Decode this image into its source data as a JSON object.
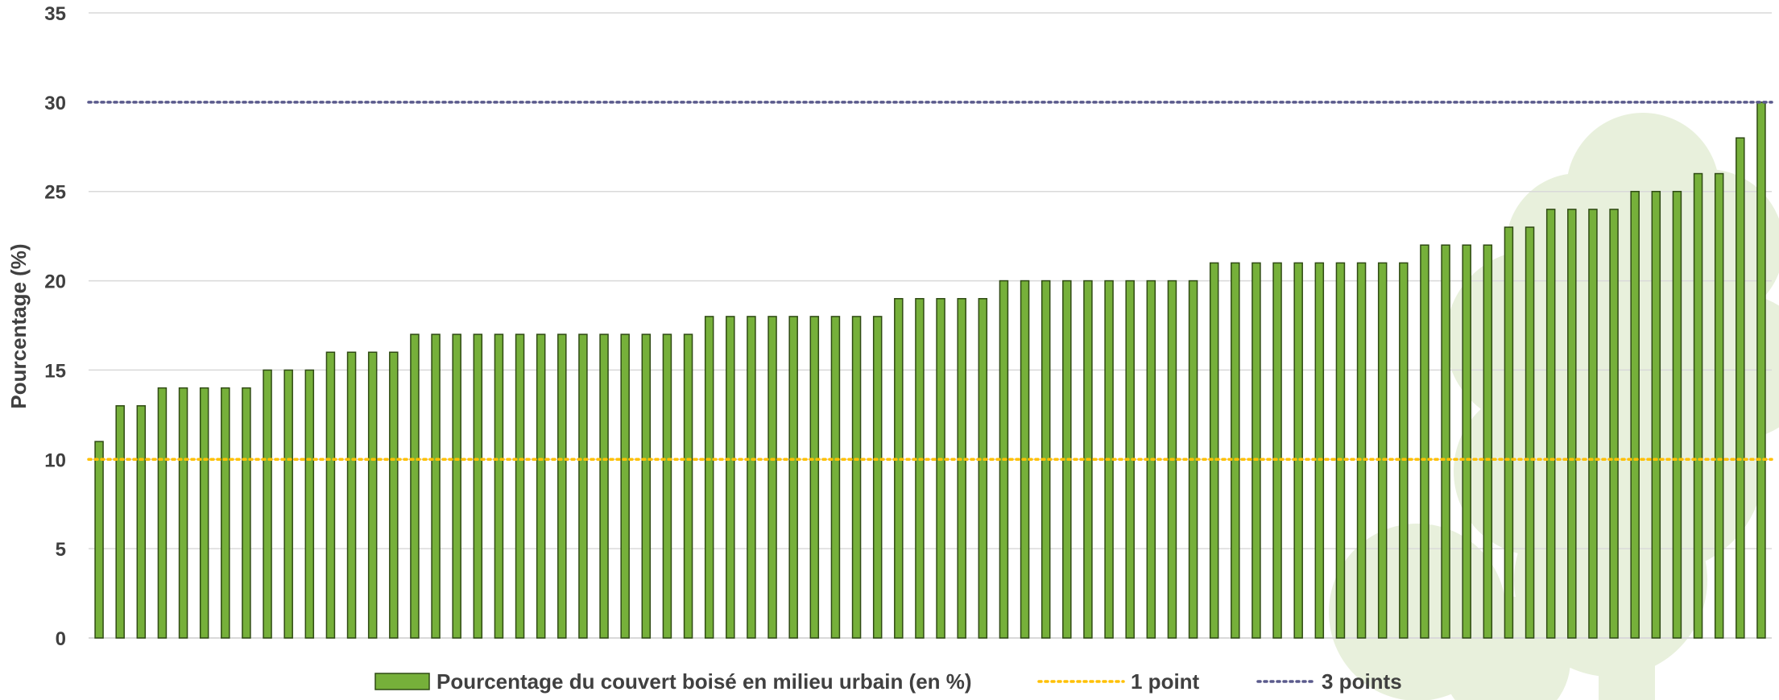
{
  "colors": {
    "bar_fill": "#76b03a",
    "bar_stroke": "#2f4a14",
    "line_1_point": "#ffc000",
    "line_3_points": "#5a5a8c",
    "grid": "#d9d9d9",
    "text": "#404040",
    "watermark": "#e8f0dc"
  },
  "chart_data": {
    "type": "bar",
    "title": "",
    "xlabel": "",
    "ylabel": "Pourcentage (%)",
    "ylim": [
      0,
      35
    ],
    "yticks": [
      0,
      5,
      10,
      15,
      20,
      25,
      30,
      35
    ],
    "grid": true,
    "legend_position": "bottom",
    "series": [
      {
        "name": "Pourcentage du couvert boisé en milieu urbain (en %)",
        "values": [
          11,
          13,
          13,
          14,
          14,
          14,
          14,
          14,
          15,
          15,
          15,
          16,
          16,
          16,
          16,
          17,
          17,
          17,
          17,
          17,
          17,
          17,
          17,
          17,
          17,
          17,
          17,
          17,
          17,
          18,
          18,
          18,
          18,
          18,
          18,
          18,
          18,
          18,
          19,
          19,
          19,
          19,
          19,
          20,
          20,
          20,
          20,
          20,
          20,
          20,
          20,
          20,
          20,
          21,
          21,
          21,
          21,
          21,
          21,
          21,
          21,
          21,
          21,
          22,
          22,
          22,
          22,
          23,
          23,
          24,
          24,
          24,
          24,
          25,
          25,
          25,
          26,
          26,
          28,
          30
        ]
      }
    ],
    "reference_lines": [
      {
        "name": "1 point",
        "value": 10
      },
      {
        "name": "3 points",
        "value": 30
      }
    ]
  }
}
